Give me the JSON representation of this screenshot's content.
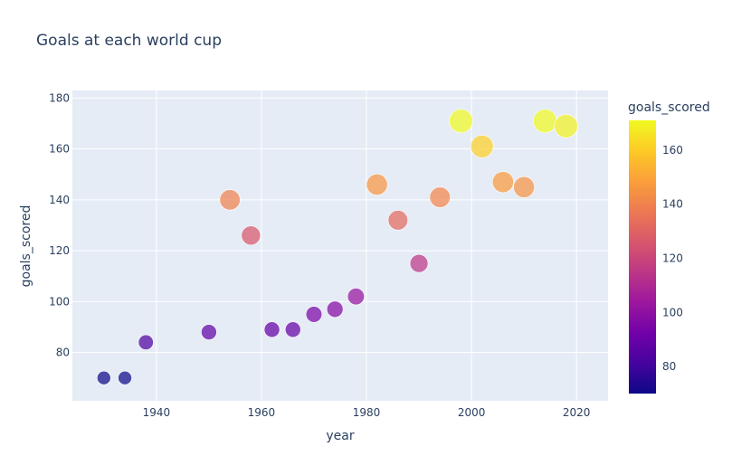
{
  "chart_data": {
    "type": "scatter",
    "title": "Goals at each world cup",
    "xlabel": "year",
    "ylabel": "goals_scored",
    "xlim": [
      1924,
      2026
    ],
    "ylim": [
      61,
      183
    ],
    "x_ticks": [
      1940,
      1960,
      1980,
      2000,
      2020
    ],
    "y_ticks": [
      80,
      100,
      120,
      140,
      160,
      180
    ],
    "grid": true,
    "colorbar": {
      "title": "goals_scored",
      "range": [
        70,
        171
      ],
      "ticks": [
        80,
        100,
        120,
        140,
        160
      ],
      "colorscale": [
        "#0d0887",
        "#46039f",
        "#7201a8",
        "#9c179e",
        "#bd3786",
        "#d8576b",
        "#ed7953",
        "#fb9f3a",
        "#fdca26",
        "#f0f921"
      ]
    },
    "size_encodes": "goals_scored",
    "points": [
      {
        "x": 1930,
        "y": 70
      },
      {
        "x": 1934,
        "y": 70
      },
      {
        "x": 1938,
        "y": 84
      },
      {
        "x": 1950,
        "y": 88
      },
      {
        "x": 1954,
        "y": 140
      },
      {
        "x": 1958,
        "y": 126
      },
      {
        "x": 1962,
        "y": 89
      },
      {
        "x": 1966,
        "y": 89
      },
      {
        "x": 1970,
        "y": 95
      },
      {
        "x": 1974,
        "y": 97
      },
      {
        "x": 1978,
        "y": 102
      },
      {
        "x": 1982,
        "y": 146
      },
      {
        "x": 1986,
        "y": 132
      },
      {
        "x": 1990,
        "y": 115
      },
      {
        "x": 1994,
        "y": 141
      },
      {
        "x": 1998,
        "y": 171
      },
      {
        "x": 2002,
        "y": 161
      },
      {
        "x": 2006,
        "y": 147
      },
      {
        "x": 2010,
        "y": 145
      },
      {
        "x": 2014,
        "y": 171
      },
      {
        "x": 2018,
        "y": 169
      }
    ]
  }
}
